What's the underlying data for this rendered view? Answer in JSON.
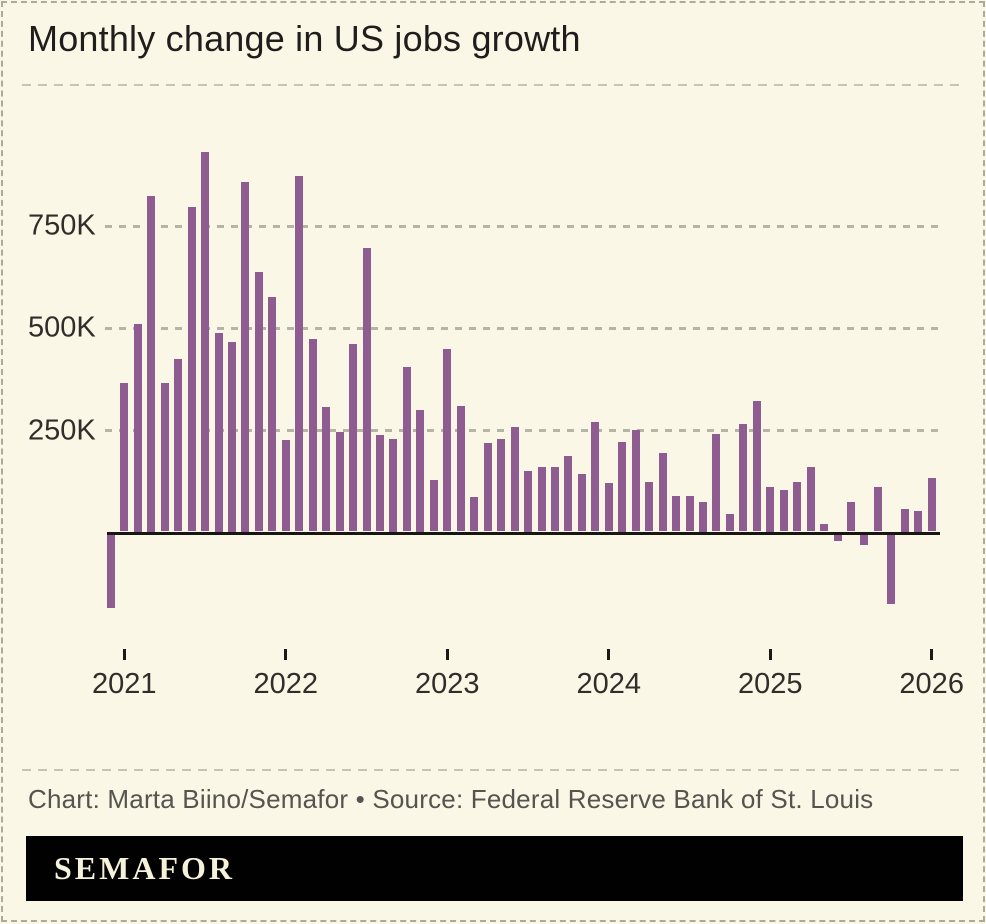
{
  "header": {
    "title": "Monthly change in US jobs growth"
  },
  "footer": {
    "attribution": "Chart: Marta Biino/Semafor • Source: Federal Reserve Bank of St. Louis",
    "logo_text": "SEMAFOR"
  },
  "colors": {
    "background": "#FAF7E6",
    "bar": "#8E5C90",
    "baseline": "#161613",
    "gridline": "#B6B4A7",
    "title_text": "#1F1E1C",
    "axis_text": "#2F2E2B",
    "attribution_text": "#55544E",
    "logo_bg": "#010101",
    "logo_text": "#F6F1D9"
  },
  "chart_data": {
    "type": "bar",
    "title": "Monthly change in US jobs growth",
    "value_unit": "thousands of jobs (K)",
    "legend": "none",
    "y_axis": {
      "tick_labels": [
        "250K",
        "500K",
        "750K"
      ],
      "tick_values": [
        250,
        500,
        750
      ],
      "ylim": [
        -250,
        1000
      ],
      "grid": "dashed horizontal lines, solid black zero baseline"
    },
    "x_axis": {
      "tick_labels": [
        "2021",
        "2022",
        "2023",
        "2024",
        "2025",
        "2026"
      ],
      "note": "one bar per month; year ticks mark January"
    },
    "series": [
      {
        "name": "Monthly change in US jobs",
        "points": [
          {
            "month": "2020-12",
            "value": -180
          },
          {
            "month": "2021-01",
            "value": 364
          },
          {
            "month": "2021-02",
            "value": 507
          },
          {
            "month": "2021-03",
            "value": 820
          },
          {
            "month": "2021-04",
            "value": 364
          },
          {
            "month": "2021-05",
            "value": 421
          },
          {
            "month": "2021-06",
            "value": 792
          },
          {
            "month": "2021-07",
            "value": 928
          },
          {
            "month": "2021-08",
            "value": 485
          },
          {
            "month": "2021-09",
            "value": 463
          },
          {
            "month": "2021-10",
            "value": 854
          },
          {
            "month": "2021-11",
            "value": 635
          },
          {
            "month": "2021-12",
            "value": 572
          },
          {
            "month": "2022-01",
            "value": 224
          },
          {
            "month": "2022-02",
            "value": 868
          },
          {
            "month": "2022-03",
            "value": 471
          },
          {
            "month": "2022-04",
            "value": 305
          },
          {
            "month": "2022-05",
            "value": 243
          },
          {
            "month": "2022-06",
            "value": 458
          },
          {
            "month": "2022-07",
            "value": 692
          },
          {
            "month": "2022-08",
            "value": 236
          },
          {
            "month": "2022-09",
            "value": 226
          },
          {
            "month": "2022-10",
            "value": 401
          },
          {
            "month": "2022-11",
            "value": 297
          },
          {
            "month": "2022-12",
            "value": 125
          },
          {
            "month": "2023-01",
            "value": 445
          },
          {
            "month": "2023-02",
            "value": 306
          },
          {
            "month": "2023-03",
            "value": 85
          },
          {
            "month": "2023-04",
            "value": 217
          },
          {
            "month": "2023-05",
            "value": 227
          },
          {
            "month": "2023-06",
            "value": 255
          },
          {
            "month": "2023-07",
            "value": 149
          },
          {
            "month": "2023-08",
            "value": 157
          },
          {
            "month": "2023-09",
            "value": 157
          },
          {
            "month": "2023-10",
            "value": 184
          },
          {
            "month": "2023-11",
            "value": 141
          },
          {
            "month": "2023-12",
            "value": 268
          },
          {
            "month": "2024-01",
            "value": 118
          },
          {
            "month": "2024-02",
            "value": 220
          },
          {
            "month": "2024-03",
            "value": 247
          },
          {
            "month": "2024-04",
            "value": 120
          },
          {
            "month": "2024-05",
            "value": 191
          },
          {
            "month": "2024-06",
            "value": 86
          },
          {
            "month": "2024-07",
            "value": 86
          },
          {
            "month": "2024-08",
            "value": 72
          },
          {
            "month": "2024-09",
            "value": 239
          },
          {
            "month": "2024-10",
            "value": 43
          },
          {
            "month": "2024-11",
            "value": 263
          },
          {
            "month": "2024-12",
            "value": 320
          },
          {
            "month": "2025-01",
            "value": 110
          },
          {
            "month": "2025-02",
            "value": 102
          },
          {
            "month": "2025-03",
            "value": 120
          },
          {
            "month": "2025-04",
            "value": 157
          },
          {
            "month": "2025-05",
            "value": 19
          },
          {
            "month": "2025-06",
            "value": -16
          },
          {
            "month": "2025-07",
            "value": 73
          },
          {
            "month": "2025-08",
            "value": -26
          },
          {
            "month": "2025-09",
            "value": 108
          },
          {
            "month": "2025-10",
            "value": -170
          },
          {
            "month": "2025-11",
            "value": 55
          },
          {
            "month": "2025-12",
            "value": 50
          },
          {
            "month": "2026-01",
            "value": 130
          }
        ]
      }
    ]
  }
}
